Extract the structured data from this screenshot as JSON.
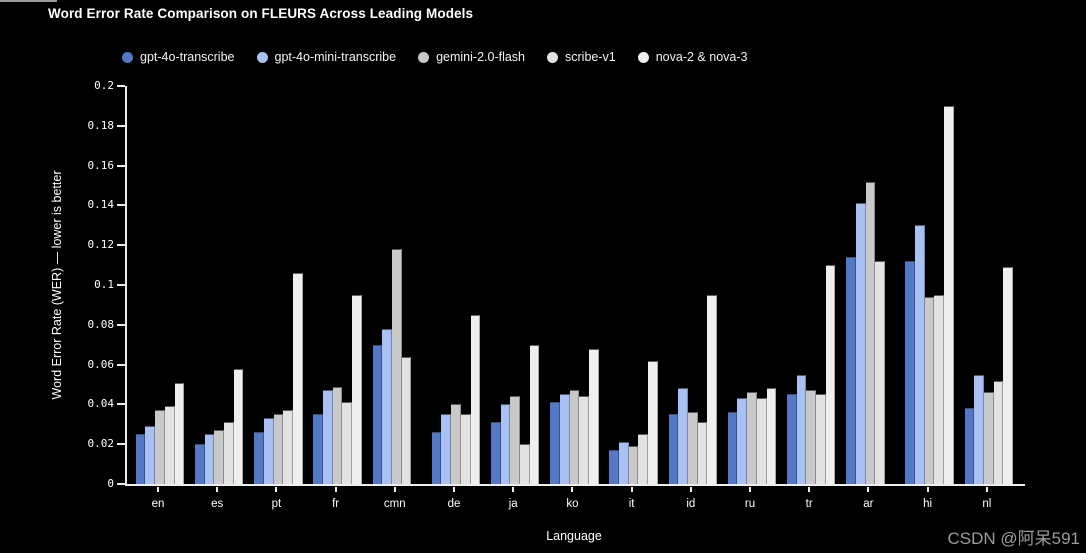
{
  "page": {
    "watermark": "CSDN @阿呆591"
  },
  "chart_data": {
    "type": "bar",
    "title": "Word Error Rate Comparison on FLEURS Across Leading Models",
    "xlabel": "Language",
    "ylabel": "Word Error Rate (WER) — lower is better",
    "ylim": [
      0,
      0.2
    ],
    "grid": false,
    "legend_position": "top",
    "background_color": "#000000",
    "axis_color": "#ededed",
    "y_ticks": [
      0,
      0.02,
      0.04,
      0.06,
      0.08,
      0.1,
      0.12,
      0.14,
      0.16,
      0.18,
      0.2
    ],
    "y_tick_labels": [
      "0",
      "0.02",
      "0.04",
      "0.06",
      "0.08",
      "0.1",
      "0.12",
      "0.14",
      "0.16",
      "0.18",
      "0.2"
    ],
    "categories": [
      "en",
      "es",
      "pt",
      "fr",
      "cmn",
      "de",
      "ja",
      "ko",
      "it",
      "id",
      "ru",
      "tr",
      "ar",
      "hi",
      "nl"
    ],
    "series": [
      {
        "name": "gpt-4o-transcribe",
        "color": "#5278c6",
        "values": [
          0.025,
          0.02,
          0.026,
          0.035,
          0.07,
          0.026,
          0.031,
          0.041,
          0.017,
          0.035,
          0.036,
          0.045,
          0.114,
          0.112,
          0.038
        ]
      },
      {
        "name": "gpt-4o-mini-transcribe",
        "color": "#a9c0f2",
        "values": [
          0.029,
          0.025,
          0.033,
          0.047,
          0.078,
          0.035,
          0.04,
          0.045,
          0.021,
          0.048,
          0.043,
          0.055,
          0.141,
          0.13,
          0.055
        ]
      },
      {
        "name": "gemini-2.0-flash",
        "color": "#c9c9c9",
        "values": [
          0.037,
          0.027,
          0.035,
          0.049,
          0.118,
          0.04,
          0.044,
          0.047,
          0.019,
          0.036,
          0.046,
          0.047,
          0.152,
          0.094,
          0.046
        ]
      },
      {
        "name": "scribe-v1",
        "color": "#e2e2e2",
        "values": [
          0.039,
          0.031,
          0.037,
          0.041,
          0.064,
          0.035,
          0.02,
          0.044,
          0.025,
          0.031,
          0.043,
          0.045,
          0.112,
          0.095,
          0.052
        ]
      },
      {
        "name": "nova-2 & nova-3",
        "color": "#efefef",
        "values": [
          0.051,
          0.058,
          0.106,
          0.095,
          null,
          0.085,
          0.07,
          0.068,
          0.062,
          0.095,
          0.048,
          0.11,
          null,
          0.19,
          0.109
        ]
      }
    ]
  }
}
